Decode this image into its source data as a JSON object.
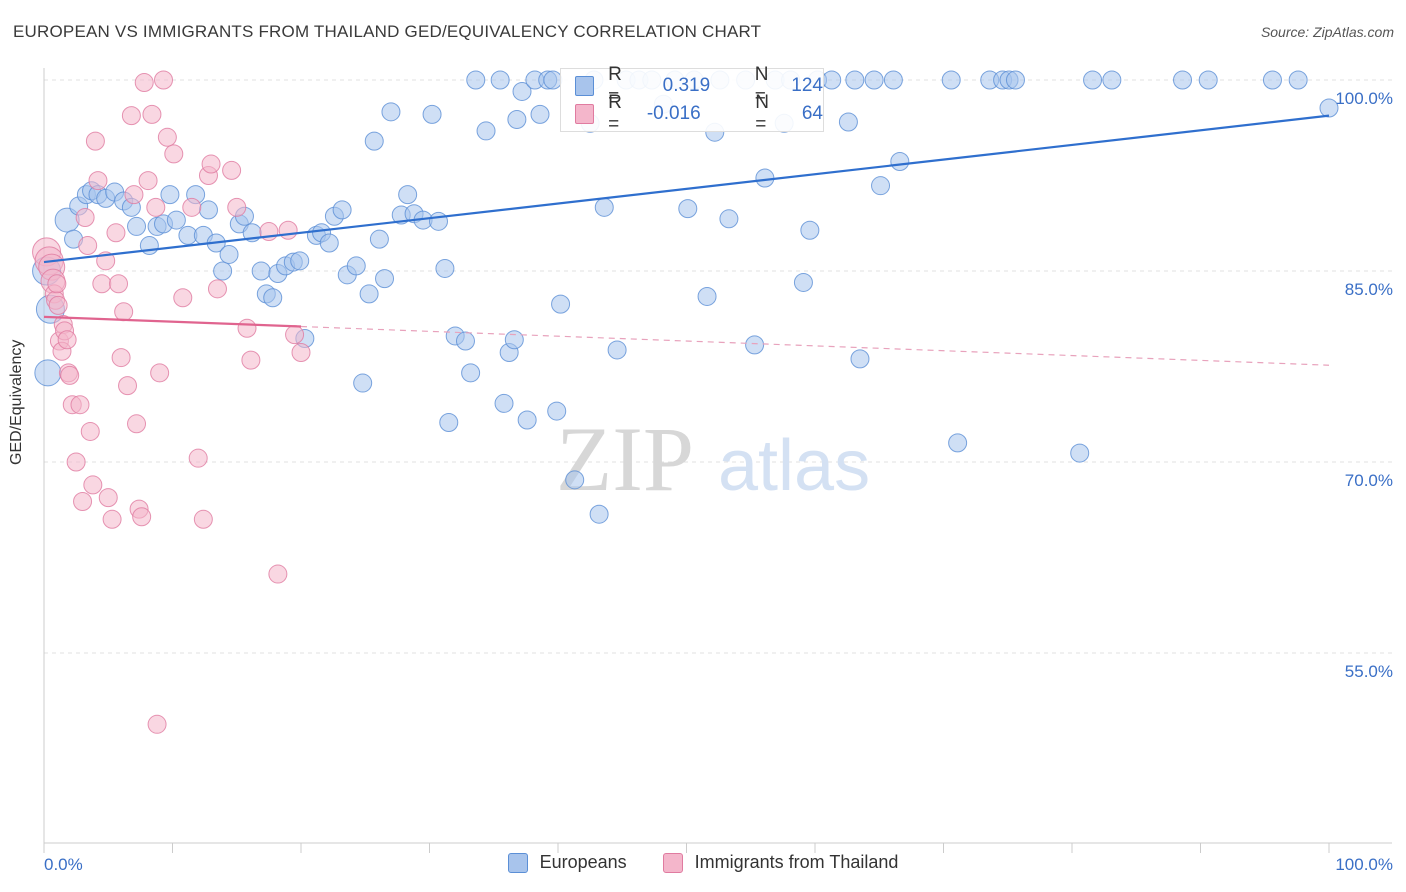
{
  "title": "EUROPEAN VS IMMIGRANTS FROM THAILAND GED/EQUIVALENCY CORRELATION CHART",
  "source": "Source: ZipAtlas.com",
  "watermark": {
    "zip": "ZIP",
    "atlas": "atlas"
  },
  "legend_top": {
    "rows": [
      {
        "r_label": "R =",
        "r_value": "0.319",
        "n_label": "N =",
        "n_value": "124",
        "color": "#a8c4ec",
        "border": "#5b8fd6"
      },
      {
        "r_label": "R =",
        "r_value": "-0.016",
        "n_label": "N =",
        "n_value": "64",
        "color": "#f4b6cb",
        "border": "#e07ba0"
      }
    ]
  },
  "bottom_legend": [
    {
      "label": "Europeans",
      "color": "#a8c4ec",
      "border": "#5b8fd6"
    },
    {
      "label": "Immigrants from Thailand",
      "color": "#f4b6cb",
      "border": "#e07ba0"
    }
  ],
  "chart_data": {
    "type": "scatter",
    "title": "EUROPEAN VS IMMIGRANTS FROM THAILAND GED/EQUIVALENCY CORRELATION CHART",
    "xlabel": "",
    "ylabel": "GED/Equivalency",
    "xlim": [
      0,
      100
    ],
    "ylim": [
      40,
      102
    ],
    "x_tick_labels": [
      {
        "value": 0,
        "label": "0.0%"
      },
      {
        "value": 100,
        "label": "100.0%"
      }
    ],
    "y_tick_labels": [
      {
        "value": 100,
        "label": "100.0%"
      },
      {
        "value": 85,
        "label": "85.0%"
      },
      {
        "value": 70,
        "label": "70.0%"
      },
      {
        "value": 55,
        "label": "55.0%"
      }
    ],
    "grid": true,
    "colors": {
      "europeans": "#5b8fd6",
      "europeans_fill": "#a8c4ec",
      "thailand": "#e07ba0",
      "thailand_fill": "#f4b6cb",
      "axis_label": "#3a6fc6"
    },
    "series": [
      {
        "name": "Europeans",
        "trend": {
          "x": [
            0,
            100
          ],
          "y": [
            85.7,
            97.2
          ],
          "dash_from": null
        },
        "points": [
          [
            0.2,
            85.0
          ],
          [
            0.5,
            82.0
          ],
          [
            0.3,
            77.0
          ],
          [
            1.8,
            89.0
          ],
          [
            2.3,
            87.5
          ],
          [
            2.7,
            90.1
          ],
          [
            3.3,
            91.0
          ],
          [
            3.7,
            91.3
          ],
          [
            4.2,
            91.0
          ],
          [
            4.8,
            90.7
          ],
          [
            5.5,
            91.2
          ],
          [
            6.2,
            90.5
          ],
          [
            6.8,
            90.0
          ],
          [
            7.2,
            88.5
          ],
          [
            8.2,
            87.0
          ],
          [
            8.8,
            88.5
          ],
          [
            9.3,
            88.7
          ],
          [
            9.8,
            91.0
          ],
          [
            10.3,
            89.0
          ],
          [
            11.2,
            87.8
          ],
          [
            11.8,
            91.0
          ],
          [
            12.4,
            87.8
          ],
          [
            12.8,
            89.8
          ],
          [
            13.4,
            87.2
          ],
          [
            13.9,
            85.0
          ],
          [
            14.4,
            86.3
          ],
          [
            15.2,
            88.7
          ],
          [
            15.6,
            89.3
          ],
          [
            16.2,
            88.0
          ],
          [
            16.9,
            85.0
          ],
          [
            17.3,
            83.2
          ],
          [
            17.8,
            82.9
          ],
          [
            18.2,
            84.8
          ],
          [
            18.8,
            85.4
          ],
          [
            19.4,
            85.7
          ],
          [
            19.9,
            85.8
          ],
          [
            20.3,
            79.7
          ],
          [
            21.2,
            87.8
          ],
          [
            21.6,
            88.0
          ],
          [
            22.2,
            87.2
          ],
          [
            22.6,
            89.3
          ],
          [
            23.2,
            89.8
          ],
          [
            23.6,
            84.7
          ],
          [
            24.3,
            85.4
          ],
          [
            24.8,
            76.2
          ],
          [
            25.3,
            83.2
          ],
          [
            25.7,
            95.2
          ],
          [
            26.1,
            87.5
          ],
          [
            26.5,
            84.4
          ],
          [
            27.0,
            97.5
          ],
          [
            27.8,
            89.4
          ],
          [
            28.3,
            91.0
          ],
          [
            28.8,
            89.5
          ],
          [
            29.5,
            89.0
          ],
          [
            30.2,
            97.3
          ],
          [
            30.7,
            88.9
          ],
          [
            31.2,
            85.2
          ],
          [
            31.5,
            73.1
          ],
          [
            32.0,
            79.9
          ],
          [
            32.8,
            79.5
          ],
          [
            33.2,
            77.0
          ],
          [
            33.6,
            100.0
          ],
          [
            34.4,
            96.0
          ],
          [
            35.5,
            100.0
          ],
          [
            35.8,
            74.6
          ],
          [
            36.2,
            78.6
          ],
          [
            36.6,
            79.6
          ],
          [
            36.8,
            96.9
          ],
          [
            37.2,
            99.1
          ],
          [
            37.6,
            73.3
          ],
          [
            38.2,
            100.0
          ],
          [
            38.6,
            97.3
          ],
          [
            39.2,
            100.0
          ],
          [
            39.6,
            100.0
          ],
          [
            39.9,
            74.0
          ],
          [
            40.2,
            82.4
          ],
          [
            41.3,
            68.6
          ],
          [
            42.5,
            96.6
          ],
          [
            42.8,
            100.0
          ],
          [
            43.2,
            65.9
          ],
          [
            43.6,
            90.0
          ],
          [
            44.6,
            78.8
          ],
          [
            45.3,
            100.0
          ],
          [
            46.3,
            100.0
          ],
          [
            47.3,
            100.0
          ],
          [
            48.2,
            98.1
          ],
          [
            49.1,
            100.0
          ],
          [
            50.1,
            89.9
          ],
          [
            50.6,
            100.0
          ],
          [
            51.6,
            83.0
          ],
          [
            52.2,
            95.9
          ],
          [
            52.6,
            100.0
          ],
          [
            53.3,
            89.1
          ],
          [
            54.6,
            100.0
          ],
          [
            55.3,
            79.2
          ],
          [
            56.1,
            92.3
          ],
          [
            56.9,
            100.0
          ],
          [
            57.6,
            96.6
          ],
          [
            58.1,
            100.0
          ],
          [
            59.1,
            84.1
          ],
          [
            59.6,
            88.2
          ],
          [
            60.2,
            100.0
          ],
          [
            61.3,
            100.0
          ],
          [
            62.6,
            96.7
          ],
          [
            63.1,
            100.0
          ],
          [
            63.5,
            78.1
          ],
          [
            64.6,
            100.0
          ],
          [
            65.1,
            91.7
          ],
          [
            66.1,
            100.0
          ],
          [
            66.6,
            93.6
          ],
          [
            70.6,
            100.0
          ],
          [
            71.1,
            71.5
          ],
          [
            73.6,
            100.0
          ],
          [
            74.6,
            100.0
          ],
          [
            75.1,
            100.0
          ],
          [
            75.6,
            100.0
          ],
          [
            80.6,
            70.7
          ],
          [
            81.6,
            100.0
          ],
          [
            83.1,
            100.0
          ],
          [
            88.6,
            100.0
          ],
          [
            90.6,
            100.0
          ],
          [
            95.6,
            100.0
          ],
          [
            97.6,
            100.0
          ],
          [
            100.0,
            97.8
          ]
        ]
      },
      {
        "name": "Immigrants from Thailand",
        "trend": {
          "x": [
            0,
            100
          ],
          "y": [
            81.4,
            77.6
          ],
          "dash_from": 20
        },
        "points": [
          [
            0.2,
            86.5
          ],
          [
            0.4,
            85.8
          ],
          [
            0.6,
            85.3
          ],
          [
            0.7,
            84.2
          ],
          [
            0.8,
            83.2
          ],
          [
            0.9,
            82.7
          ],
          [
            1.0,
            84.0
          ],
          [
            1.1,
            82.3
          ],
          [
            1.2,
            79.5
          ],
          [
            1.4,
            78.7
          ],
          [
            1.5,
            80.8
          ],
          [
            1.6,
            80.3
          ],
          [
            1.8,
            79.6
          ],
          [
            1.9,
            77.0
          ],
          [
            2.0,
            76.8
          ],
          [
            2.2,
            74.5
          ],
          [
            2.5,
            70.0
          ],
          [
            2.8,
            74.5
          ],
          [
            3.0,
            66.9
          ],
          [
            3.2,
            89.2
          ],
          [
            3.4,
            87.0
          ],
          [
            3.6,
            72.4
          ],
          [
            3.8,
            68.2
          ],
          [
            4.0,
            95.2
          ],
          [
            4.2,
            92.1
          ],
          [
            4.5,
            84.0
          ],
          [
            4.8,
            85.8
          ],
          [
            5.0,
            67.2
          ],
          [
            5.3,
            65.5
          ],
          [
            5.6,
            88.0
          ],
          [
            5.8,
            84.0
          ],
          [
            6.0,
            78.2
          ],
          [
            6.2,
            81.8
          ],
          [
            6.5,
            76.0
          ],
          [
            6.8,
            97.2
          ],
          [
            7.0,
            91.0
          ],
          [
            7.2,
            73.0
          ],
          [
            7.4,
            66.3
          ],
          [
            7.6,
            65.7
          ],
          [
            7.8,
            99.8
          ],
          [
            8.1,
            92.1
          ],
          [
            8.4,
            97.3
          ],
          [
            8.7,
            90.0
          ],
          [
            8.8,
            49.4
          ],
          [
            9.0,
            77.0
          ],
          [
            9.3,
            100.0
          ],
          [
            9.6,
            95.5
          ],
          [
            10.1,
            94.2
          ],
          [
            10.8,
            82.9
          ],
          [
            11.5,
            90.0
          ],
          [
            12.0,
            70.3
          ],
          [
            12.4,
            65.5
          ],
          [
            12.8,
            92.5
          ],
          [
            13.0,
            93.4
          ],
          [
            13.5,
            83.6
          ],
          [
            14.6,
            92.9
          ],
          [
            15.0,
            90.0
          ],
          [
            15.8,
            80.5
          ],
          [
            16.1,
            78.0
          ],
          [
            17.5,
            88.1
          ],
          [
            18.2,
            61.2
          ],
          [
            19.0,
            88.2
          ],
          [
            19.5,
            80.0
          ],
          [
            20.0,
            78.6
          ]
        ]
      }
    ]
  }
}
